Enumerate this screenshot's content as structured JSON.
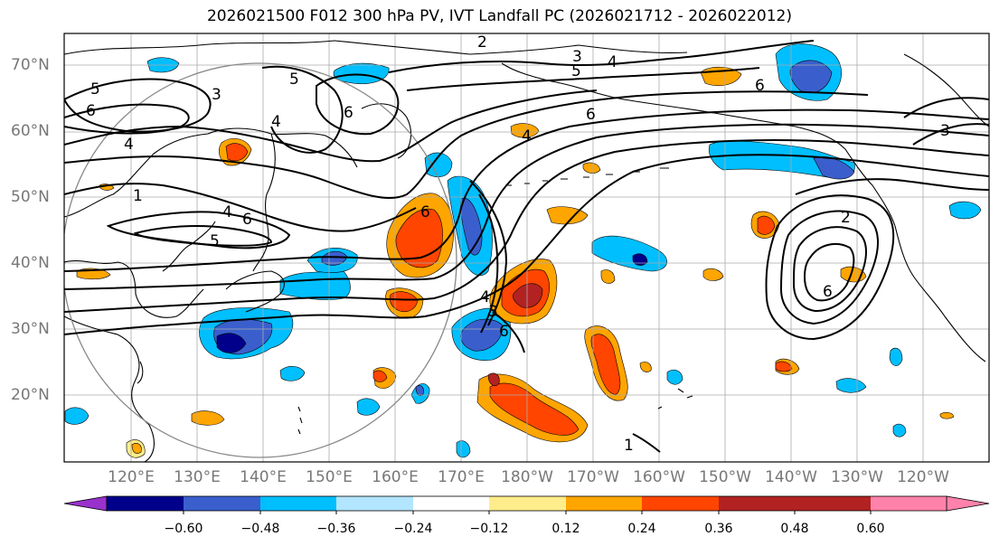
{
  "title": "2026021500 F012 300 hPa PV, IVT Landfall PC (2026021712 - 2026022012)",
  "lat_labels": [
    "70°N",
    "60°N",
    "50°N",
    "40°N",
    "30°N",
    "20°N"
  ],
  "lon_labels": [
    "120°E",
    "130°E",
    "140°E",
    "150°E",
    "160°E",
    "170°E",
    "180°W",
    "170°W",
    "160°W",
    "150°W",
    "140°W",
    "130°W",
    "120°W"
  ],
  "colorbar": {
    "colors": [
      "#9932cc",
      "#00008b",
      "#3a5fcd",
      "#00bfff",
      "#b2e5ff",
      "#ffffff",
      "#ffec8b",
      "#ffa500",
      "#ff4500",
      "#b22222",
      "#ff82ab"
    ],
    "tick_labels": [
      "−0.60",
      "−0.48",
      "−0.36",
      "−0.24",
      "−0.12",
      "0.12",
      "0.24",
      "0.36",
      "0.48",
      "0.60"
    ]
  },
  "contour_labels": [
    "5",
    "6",
    "4",
    "3",
    "5",
    "4",
    "5",
    "6",
    "3",
    "6",
    "4",
    "6",
    "6",
    "4",
    "5",
    "4",
    "6",
    "3",
    "6",
    "2",
    "6",
    "1",
    "4",
    "3",
    "1",
    "2"
  ]
}
